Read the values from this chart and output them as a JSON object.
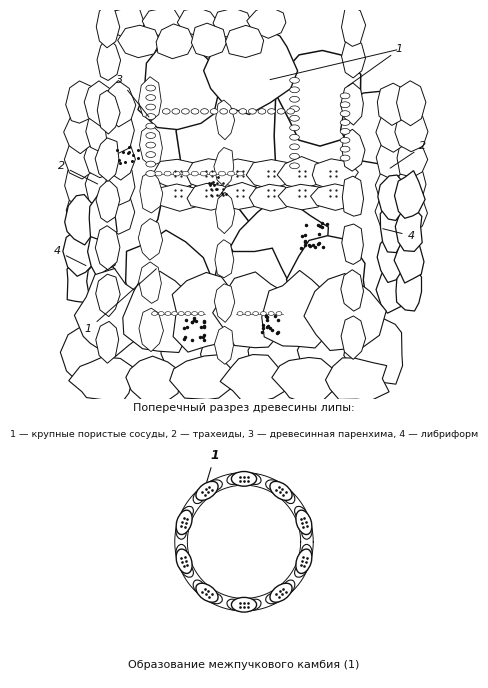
{
  "bg_color": "#ffffff",
  "line_color": "#111111",
  "fig_width": 4.88,
  "fig_height": 6.88,
  "title1": "Поперечный разрез древесины липы:",
  "legend1": "1 — крупные пористые сосуды, 2 — трахеиды, 3 — древесинная паренхима, 4 — либриформ",
  "title2": "Образование межпучкового камбия (1)"
}
